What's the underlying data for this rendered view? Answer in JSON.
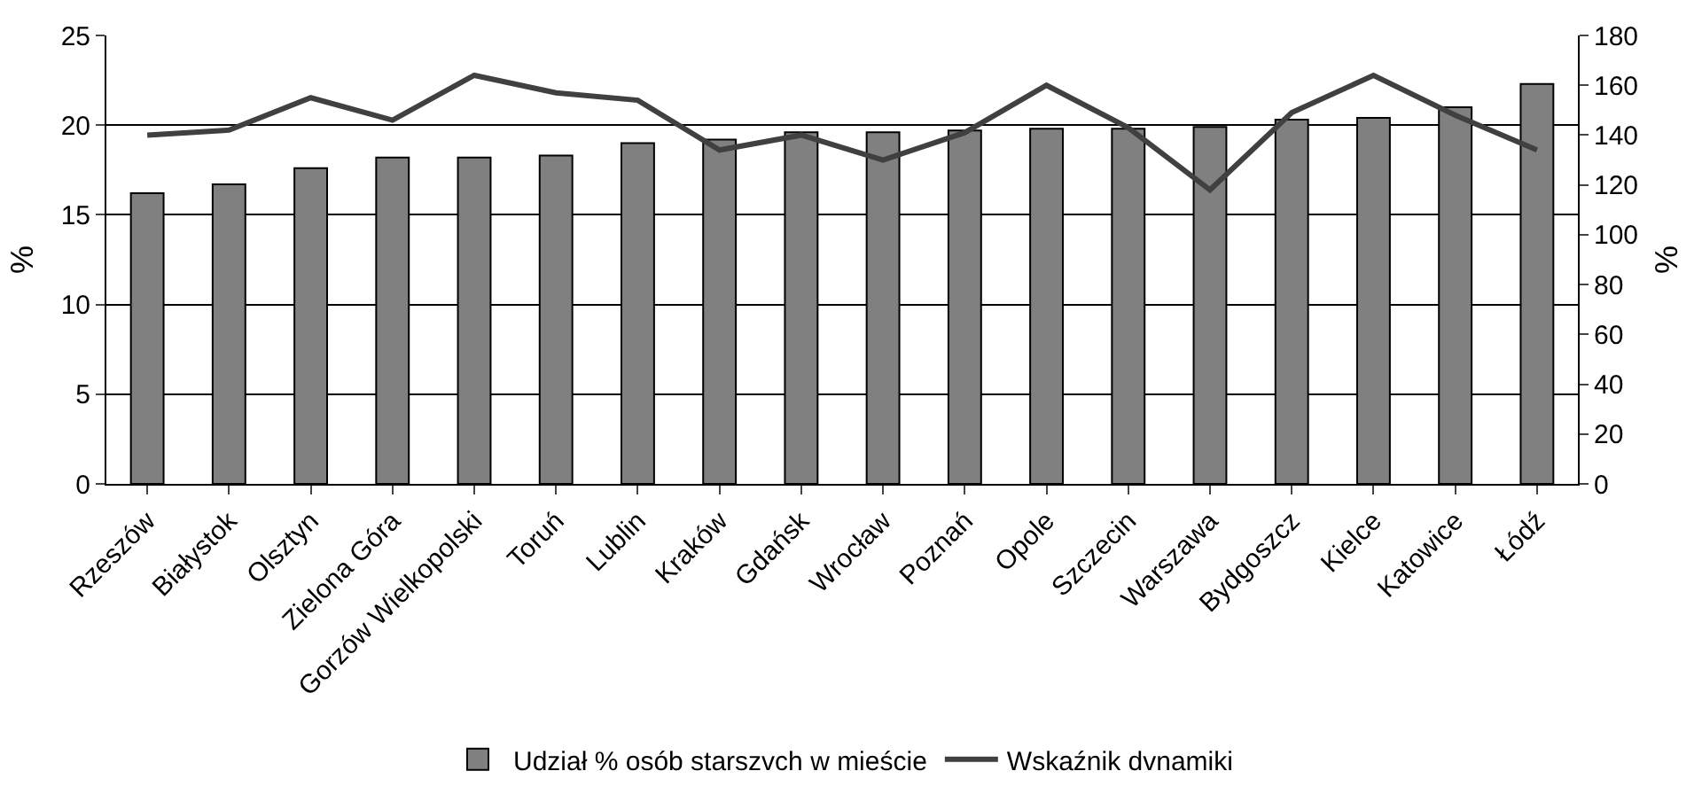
{
  "chart_data": {
    "type": "bar",
    "categories": [
      "Rzeszów",
      "Białystok",
      "Olsztyn",
      "Zielona Góra",
      "Gorzów Wielkopolski",
      "Toruń",
      "Lublin",
      "Kraków",
      "Gdańsk",
      "Wrocław",
      "Poznań",
      "Opole",
      "Szczecin",
      "Warszawa",
      "Bydgoszcz",
      "Kielce",
      "Katowice",
      "Łódź"
    ],
    "series": [
      {
        "name": "Udział % osób starszvch w mieście",
        "color": "#808080",
        "values": [
          16.2,
          16.7,
          17.6,
          18.2,
          18.2,
          18.3,
          19.0,
          19.2,
          19.6,
          19.6,
          19.7,
          19.8,
          19.8,
          19.9,
          20.3,
          20.4,
          21.0,
          22.3
        ]
      },
      {
        "name": "Wskaźnik dvnamiki",
        "type": "line",
        "axis": "y2",
        "color": "#404040",
        "values": [
          140,
          142,
          155,
          146,
          164,
          157,
          154,
          134,
          140,
          130,
          141,
          160,
          143,
          118,
          149,
          164,
          148,
          134
        ]
      }
    ],
    "ylabel": "%",
    "y2label": "%",
    "ylim": [
      0,
      25
    ],
    "yticks": [
      0,
      5,
      10,
      15,
      20,
      25
    ],
    "y2lim": [
      0,
      180
    ],
    "y2ticks": [
      0,
      20,
      40,
      60,
      80,
      100,
      120,
      140,
      160,
      180
    ],
    "grid": "y",
    "legend": "bottom",
    "marker": "none",
    "line_style": "solid"
  }
}
